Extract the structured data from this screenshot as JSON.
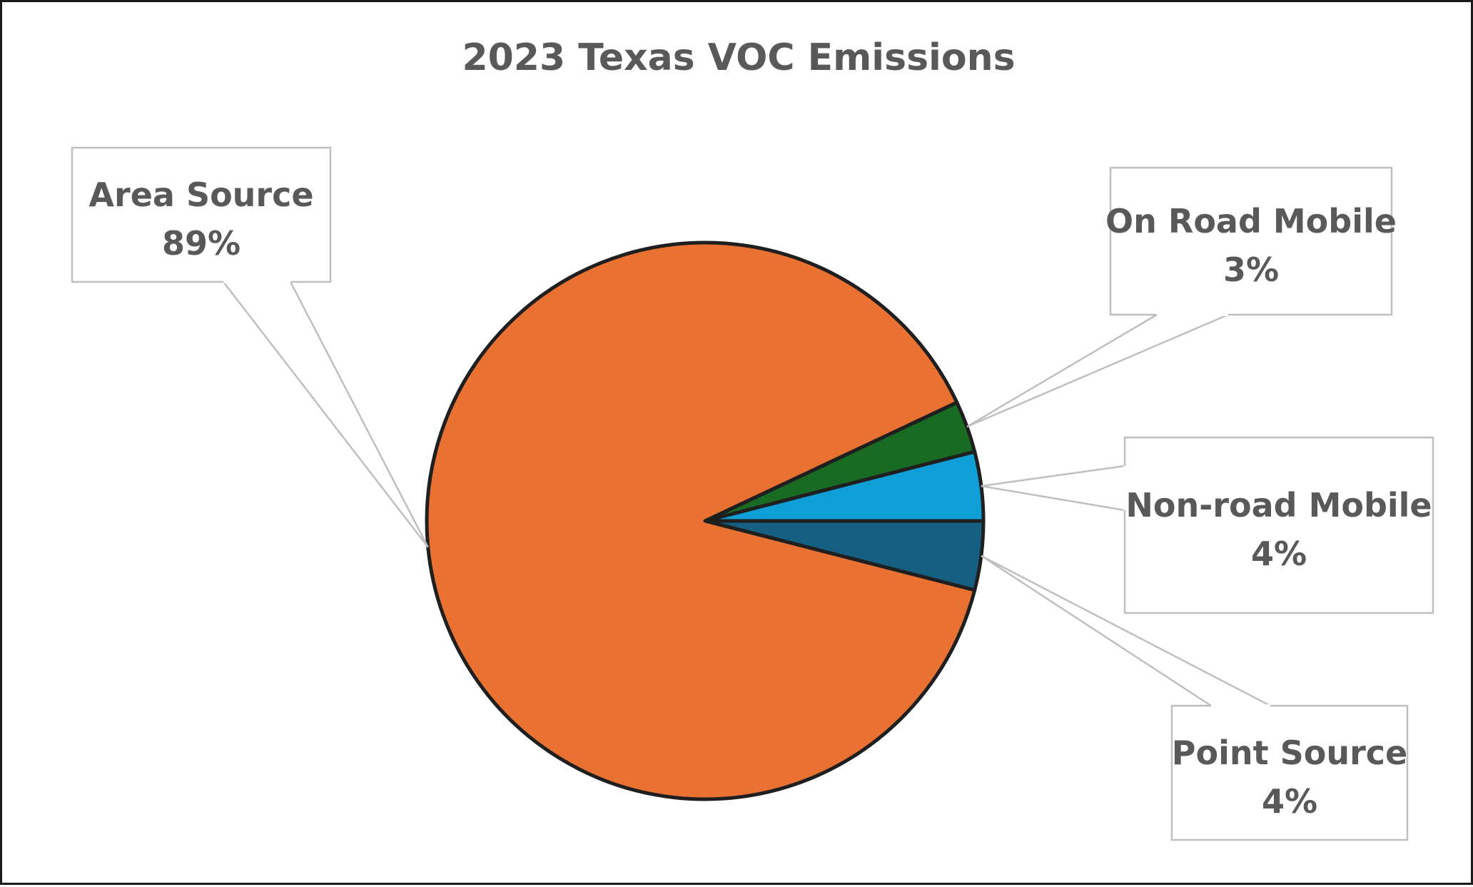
{
  "chart_data": {
    "type": "pie",
    "title": "2023 Texas VOC Emissions",
    "slices": [
      {
        "label": "Area Source",
        "value": 89,
        "value_label": "89%",
        "color": "#E97132"
      },
      {
        "label": "On Road Mobile",
        "value": 3,
        "value_label": "3%",
        "color": "#196B24"
      },
      {
        "label": "Non-road Mobile",
        "value": 4,
        "value_label": "4%",
        "color": "#0F9ED5"
      },
      {
        "label": "Point Source",
        "value": 4,
        "value_label": "4%",
        "color": "#156082"
      }
    ],
    "legend": "none",
    "data_labels": "callouts"
  }
}
